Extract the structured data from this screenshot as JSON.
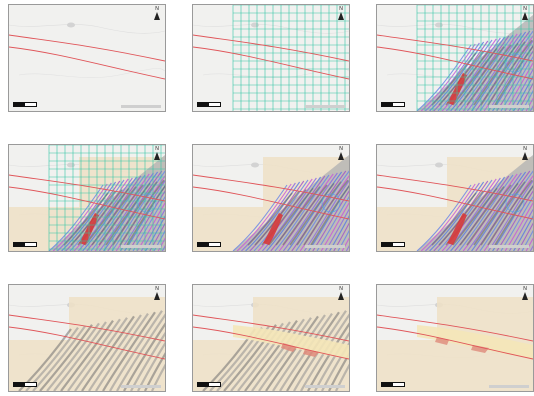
{
  "map_figure": {
    "panel_count": 9,
    "grid": "3x3",
    "north_arrow_letter": "N",
    "colors": {
      "basemap": "#f1f1ef",
      "boundary_line": "#e0565a",
      "survey_grid": "#35c6a5",
      "geology_gray": "#8f8f8f",
      "geology_dark": "#6f6f6f",
      "geology_red": "#d63a3a",
      "geology_blue": "#6c87e6",
      "geology_magenta": "#c75bd8",
      "tan_zone": "#efe0c6",
      "highlight_zone": "#f4e6b8",
      "selected_red": "#df8a7a"
    },
    "panels": [
      {
        "id": "p1",
        "layers": [
          "basemap",
          "corridor"
        ]
      },
      {
        "id": "p2",
        "layers": [
          "basemap",
          "corridor",
          "grid"
        ]
      },
      {
        "id": "p3",
        "layers": [
          "basemap",
          "corridor",
          "grid",
          "geology"
        ]
      },
      {
        "id": "p4",
        "layers": [
          "basemap",
          "tan",
          "corridor",
          "grid",
          "geology"
        ]
      },
      {
        "id": "p5",
        "layers": [
          "basemap",
          "tan",
          "corridor",
          "geology"
        ]
      },
      {
        "id": "p6",
        "layers": [
          "basemap",
          "tan",
          "corridor",
          "geology"
        ]
      },
      {
        "id": "p7",
        "layers": [
          "basemap",
          "tan",
          "corridor",
          "gray_geology"
        ]
      },
      {
        "id": "p8",
        "layers": [
          "basemap",
          "tan",
          "corridor",
          "gray_geology",
          "highlight"
        ]
      },
      {
        "id": "p9",
        "layers": [
          "basemap",
          "tan",
          "corridor",
          "highlight"
        ]
      }
    ]
  }
}
